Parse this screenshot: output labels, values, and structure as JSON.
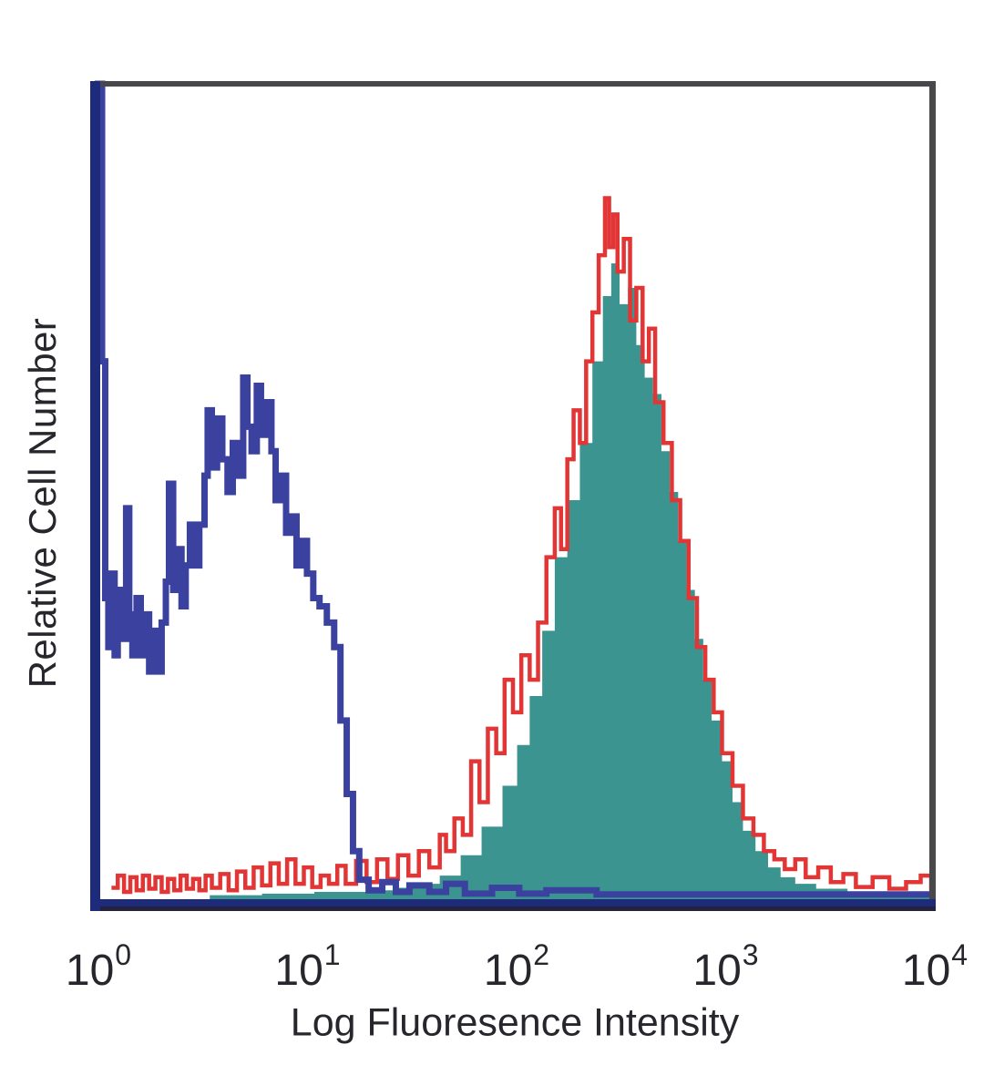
{
  "figure": {
    "background_color": "#ffffff"
  },
  "chart_data": {
    "type": "area",
    "chart_kind": "flow-cytometry-histogram-overlay",
    "title": "",
    "xlabel": "Log Fluoresence Intensity",
    "ylabel": "Relative Cell Number",
    "x_scale": "log10",
    "x_range_log": [
      0,
      4
    ],
    "ylim": [
      0,
      1
    ],
    "y_ticks": "none",
    "grid": false,
    "legend": "none",
    "x_tick_labels": [
      {
        "base": "10",
        "exp": "0"
      },
      {
        "base": "10",
        "exp": "1"
      },
      {
        "base": "10",
        "exp": "2"
      },
      {
        "base": "10",
        "exp": "3"
      },
      {
        "base": "10",
        "exp": "4"
      }
    ],
    "colors": {
      "frame_gray": "#48484b",
      "axis_navy": "#1e2a7a",
      "axis_navy_dark": "#23233e",
      "control_blue": "#3a419e",
      "stained_fill_teal": "#3b948f",
      "stained_outline_red": "#e23636",
      "text": "#26262c"
    },
    "series": [
      {
        "name": "stained-filled-histogram",
        "style": "filled-area",
        "color": "#3b948f",
        "points": [
          [
            0.55,
            0.006
          ],
          [
            0.8,
            0.008
          ],
          [
            1.05,
            0.01
          ],
          [
            1.3,
            0.012
          ],
          [
            1.45,
            0.015
          ],
          [
            1.55,
            0.02
          ],
          [
            1.65,
            0.03
          ],
          [
            1.75,
            0.055
          ],
          [
            1.85,
            0.09
          ],
          [
            1.95,
            0.14
          ],
          [
            2.02,
            0.19
          ],
          [
            2.08,
            0.25
          ],
          [
            2.14,
            0.33
          ],
          [
            2.2,
            0.42
          ],
          [
            2.26,
            0.49
          ],
          [
            2.32,
            0.56
          ],
          [
            2.38,
            0.66
          ],
          [
            2.43,
            0.74
          ],
          [
            2.47,
            0.78
          ],
          [
            2.51,
            0.73
          ],
          [
            2.55,
            0.75
          ],
          [
            2.59,
            0.68
          ],
          [
            2.63,
            0.64
          ],
          [
            2.67,
            0.62
          ],
          [
            2.71,
            0.55
          ],
          [
            2.75,
            0.5
          ],
          [
            2.79,
            0.44
          ],
          [
            2.83,
            0.38
          ],
          [
            2.87,
            0.32
          ],
          [
            2.91,
            0.27
          ],
          [
            2.95,
            0.22
          ],
          [
            3.0,
            0.17
          ],
          [
            3.05,
            0.12
          ],
          [
            3.1,
            0.085
          ],
          [
            3.16,
            0.06
          ],
          [
            3.22,
            0.04
          ],
          [
            3.28,
            0.028
          ],
          [
            3.35,
            0.02
          ],
          [
            3.45,
            0.014
          ],
          [
            3.6,
            0.01
          ],
          [
            3.8,
            0.007
          ],
          [
            4.0,
            0.005
          ]
        ]
      },
      {
        "name": "stained-outline-histogram",
        "style": "open-line",
        "color": "#e23636",
        "line_width": 4.5,
        "points": [
          [
            0.08,
            0.015
          ],
          [
            0.11,
            0.03
          ],
          [
            0.14,
            0.01
          ],
          [
            0.17,
            0.028
          ],
          [
            0.2,
            0.012
          ],
          [
            0.23,
            0.03
          ],
          [
            0.26,
            0.014
          ],
          [
            0.29,
            0.028
          ],
          [
            0.32,
            0.01
          ],
          [
            0.35,
            0.026
          ],
          [
            0.38,
            0.012
          ],
          [
            0.41,
            0.03
          ],
          [
            0.44,
            0.014
          ],
          [
            0.47,
            0.026
          ],
          [
            0.5,
            0.012
          ],
          [
            0.53,
            0.03
          ],
          [
            0.56,
            0.015
          ],
          [
            0.6,
            0.032
          ],
          [
            0.64,
            0.012
          ],
          [
            0.68,
            0.035
          ],
          [
            0.72,
            0.015
          ],
          [
            0.76,
            0.04
          ],
          [
            0.8,
            0.018
          ],
          [
            0.84,
            0.045
          ],
          [
            0.88,
            0.02
          ],
          [
            0.92,
            0.05
          ],
          [
            0.96,
            0.02
          ],
          [
            1.0,
            0.04
          ],
          [
            1.04,
            0.016
          ],
          [
            1.08,
            0.03
          ],
          [
            1.12,
            0.02
          ],
          [
            1.16,
            0.042
          ],
          [
            1.2,
            0.02
          ],
          [
            1.25,
            0.048
          ],
          [
            1.3,
            0.022
          ],
          [
            1.35,
            0.05
          ],
          [
            1.4,
            0.026
          ],
          [
            1.45,
            0.055
          ],
          [
            1.5,
            0.03
          ],
          [
            1.55,
            0.06
          ],
          [
            1.6,
            0.04
          ],
          [
            1.65,
            0.08
          ],
          [
            1.68,
            0.06
          ],
          [
            1.72,
            0.1
          ],
          [
            1.76,
            0.08
          ],
          [
            1.8,
            0.17
          ],
          [
            1.84,
            0.12
          ],
          [
            1.88,
            0.21
          ],
          [
            1.92,
            0.18
          ],
          [
            1.96,
            0.27
          ],
          [
            2.0,
            0.23
          ],
          [
            2.04,
            0.3
          ],
          [
            2.08,
            0.27
          ],
          [
            2.12,
            0.34
          ],
          [
            2.16,
            0.42
          ],
          [
            2.2,
            0.48
          ],
          [
            2.23,
            0.43
          ],
          [
            2.26,
            0.54
          ],
          [
            2.29,
            0.6
          ],
          [
            2.32,
            0.56
          ],
          [
            2.35,
            0.66
          ],
          [
            2.38,
            0.72
          ],
          [
            2.41,
            0.79
          ],
          [
            2.44,
            0.86
          ],
          [
            2.46,
            0.8
          ],
          [
            2.48,
            0.84
          ],
          [
            2.5,
            0.77
          ],
          [
            2.53,
            0.81
          ],
          [
            2.56,
            0.71
          ],
          [
            2.59,
            0.75
          ],
          [
            2.62,
            0.66
          ],
          [
            2.65,
            0.7
          ],
          [
            2.68,
            0.61
          ],
          [
            2.72,
            0.56
          ],
          [
            2.76,
            0.49
          ],
          [
            2.8,
            0.44
          ],
          [
            2.84,
            0.37
          ],
          [
            2.88,
            0.31
          ],
          [
            2.92,
            0.27
          ],
          [
            2.96,
            0.23
          ],
          [
            3.0,
            0.18
          ],
          [
            3.05,
            0.14
          ],
          [
            3.1,
            0.1
          ],
          [
            3.15,
            0.08
          ],
          [
            3.2,
            0.06
          ],
          [
            3.25,
            0.05
          ],
          [
            3.3,
            0.038
          ],
          [
            3.35,
            0.05
          ],
          [
            3.4,
            0.028
          ],
          [
            3.46,
            0.04
          ],
          [
            3.52,
            0.022
          ],
          [
            3.58,
            0.032
          ],
          [
            3.64,
            0.016
          ],
          [
            3.72,
            0.028
          ],
          [
            3.8,
            0.014
          ],
          [
            3.88,
            0.022
          ],
          [
            3.95,
            0.03
          ],
          [
            4.0,
            0.012
          ]
        ]
      },
      {
        "name": "unstained-control-histogram",
        "style": "open-line",
        "color": "#3a419e",
        "line_width": 7,
        "points": [
          [
            0.0,
            1.0
          ],
          [
            0.035,
            0.66
          ],
          [
            0.05,
            0.37
          ],
          [
            0.065,
            0.31
          ],
          [
            0.08,
            0.4
          ],
          [
            0.095,
            0.3
          ],
          [
            0.11,
            0.38
          ],
          [
            0.125,
            0.32
          ],
          [
            0.15,
            0.48
          ],
          [
            0.165,
            0.35
          ],
          [
            0.18,
            0.3
          ],
          [
            0.2,
            0.37
          ],
          [
            0.22,
            0.3
          ],
          [
            0.24,
            0.35
          ],
          [
            0.26,
            0.28
          ],
          [
            0.28,
            0.33
          ],
          [
            0.3,
            0.28
          ],
          [
            0.32,
            0.34
          ],
          [
            0.34,
            0.39
          ],
          [
            0.355,
            0.51
          ],
          [
            0.375,
            0.38
          ],
          [
            0.395,
            0.43
          ],
          [
            0.415,
            0.36
          ],
          [
            0.435,
            0.41
          ],
          [
            0.455,
            0.46
          ],
          [
            0.475,
            0.41
          ],
          [
            0.5,
            0.46
          ],
          [
            0.525,
            0.52
          ],
          [
            0.54,
            0.6
          ],
          [
            0.56,
            0.53
          ],
          [
            0.585,
            0.59
          ],
          [
            0.61,
            0.54
          ],
          [
            0.635,
            0.5
          ],
          [
            0.66,
            0.56
          ],
          [
            0.685,
            0.52
          ],
          [
            0.71,
            0.64
          ],
          [
            0.73,
            0.58
          ],
          [
            0.75,
            0.55
          ],
          [
            0.775,
            0.63
          ],
          [
            0.795,
            0.57
          ],
          [
            0.82,
            0.61
          ],
          [
            0.845,
            0.55
          ],
          [
            0.865,
            0.49
          ],
          [
            0.89,
            0.52
          ],
          [
            0.915,
            0.45
          ],
          [
            0.94,
            0.47
          ],
          [
            0.965,
            0.41
          ],
          [
            0.99,
            0.44
          ],
          [
            1.015,
            0.4
          ],
          [
            1.045,
            0.37
          ],
          [
            1.075,
            0.36
          ],
          [
            1.11,
            0.34
          ],
          [
            1.145,
            0.31
          ],
          [
            1.175,
            0.22
          ],
          [
            1.205,
            0.13
          ],
          [
            1.235,
            0.06
          ],
          [
            1.265,
            0.025
          ],
          [
            1.31,
            0.012
          ],
          [
            1.375,
            0.022
          ],
          [
            1.44,
            0.01
          ],
          [
            1.505,
            0.018
          ],
          [
            1.6,
            0.01
          ],
          [
            1.68,
            0.02
          ],
          [
            1.77,
            0.008
          ],
          [
            1.9,
            0.015
          ],
          [
            2.03,
            0.008
          ],
          [
            2.16,
            0.012
          ],
          [
            2.4,
            0.007
          ],
          [
            2.8,
            0.007
          ],
          [
            3.2,
            0.007
          ],
          [
            3.6,
            0.007
          ],
          [
            4.0,
            0.007
          ]
        ]
      }
    ]
  }
}
